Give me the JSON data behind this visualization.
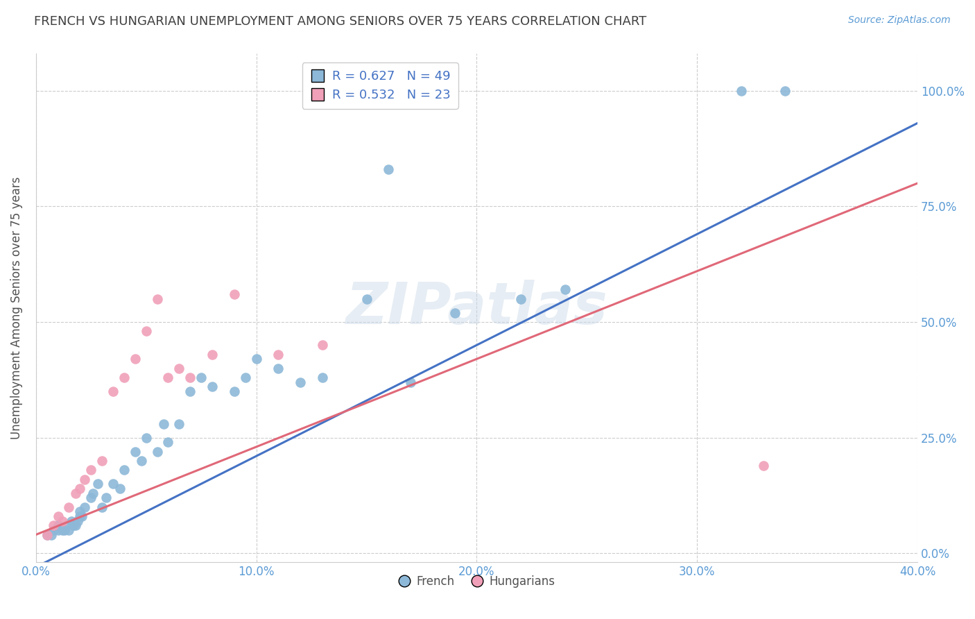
{
  "title": "FRENCH VS HUNGARIAN UNEMPLOYMENT AMONG SENIORS OVER 75 YEARS CORRELATION CHART",
  "source": "Source: ZipAtlas.com",
  "ylabel": "Unemployment Among Seniors over 75 years",
  "xlabel_ticks": [
    "0.0%",
    "10.0%",
    "20.0%",
    "30.0%",
    "40.0%"
  ],
  "ylabel_ticks": [
    "0.0%",
    "25.0%",
    "50.0%",
    "75.0%",
    "100.0%"
  ],
  "xlim": [
    0.0,
    0.4
  ],
  "ylim": [
    -0.02,
    1.08
  ],
  "watermark_text": "ZIPatlas",
  "legend_french_R": "R = 0.627",
  "legend_french_N": "N = 49",
  "legend_hung_R": "R = 0.532",
  "legend_hung_N": "N = 23",
  "french_color": "#8DB8D8",
  "hungarian_color": "#F0A0B8",
  "line_french_color": "#4472C4",
  "line_hungarian_color": "#E06878",
  "french_scatter_x": [
    0.005,
    0.007,
    0.008,
    0.01,
    0.01,
    0.012,
    0.013,
    0.014,
    0.015,
    0.016,
    0.017,
    0.018,
    0.019,
    0.02,
    0.02,
    0.021,
    0.022,
    0.025,
    0.026,
    0.028,
    0.03,
    0.032,
    0.035,
    0.038,
    0.04,
    0.045,
    0.048,
    0.05,
    0.055,
    0.058,
    0.06,
    0.065,
    0.07,
    0.075,
    0.08,
    0.09,
    0.095,
    0.1,
    0.11,
    0.12,
    0.13,
    0.15,
    0.16,
    0.17,
    0.19,
    0.22,
    0.24,
    0.32,
    0.34
  ],
  "french_scatter_y": [
    0.04,
    0.04,
    0.05,
    0.05,
    0.06,
    0.05,
    0.05,
    0.06,
    0.05,
    0.07,
    0.06,
    0.06,
    0.07,
    0.08,
    0.09,
    0.08,
    0.1,
    0.12,
    0.13,
    0.15,
    0.1,
    0.12,
    0.15,
    0.14,
    0.18,
    0.22,
    0.2,
    0.25,
    0.22,
    0.28,
    0.24,
    0.28,
    0.35,
    0.38,
    0.36,
    0.35,
    0.38,
    0.42,
    0.4,
    0.37,
    0.38,
    0.55,
    0.83,
    0.37,
    0.52,
    0.55,
    0.57,
    1.0,
    1.0
  ],
  "hungarian_scatter_x": [
    0.005,
    0.008,
    0.01,
    0.012,
    0.015,
    0.018,
    0.02,
    0.022,
    0.025,
    0.03,
    0.035,
    0.04,
    0.045,
    0.05,
    0.055,
    0.06,
    0.065,
    0.07,
    0.08,
    0.09,
    0.11,
    0.13,
    0.33
  ],
  "hungarian_scatter_y": [
    0.04,
    0.06,
    0.08,
    0.07,
    0.1,
    0.13,
    0.14,
    0.16,
    0.18,
    0.2,
    0.35,
    0.38,
    0.42,
    0.48,
    0.55,
    0.38,
    0.4,
    0.38,
    0.43,
    0.56,
    0.43,
    0.45,
    0.19
  ],
  "french_line_x": [
    0.0,
    0.4
  ],
  "french_line_y": [
    -0.03,
    0.93
  ],
  "hungarian_line_x": [
    0.0,
    0.4
  ],
  "hungarian_line_y": [
    0.04,
    0.8
  ],
  "grid_color": "#CCCCCC",
  "background_color": "#FFFFFF",
  "title_color": "#404040",
  "axis_label_color": "#505050",
  "tick_label_color": "#5B9BD5",
  "right_tick_color": "#5B9BD5",
  "source_color": "#5B9BD5"
}
